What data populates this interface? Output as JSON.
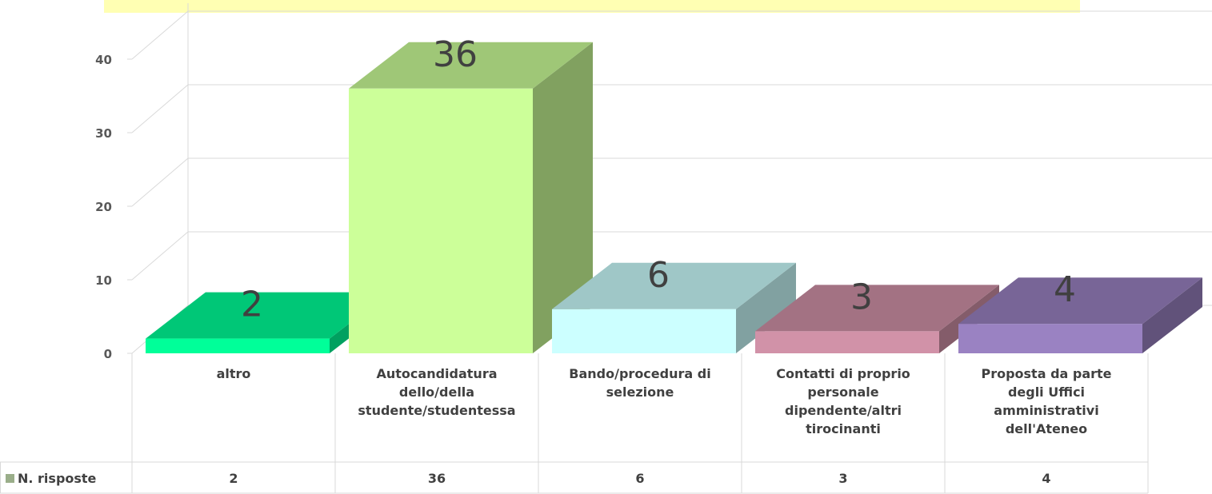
{
  "chart_data": {
    "type": "bar3d",
    "categories": [
      "altro",
      "Autocandidatura dello/della studente/studentessa",
      "Bando/procedura di selezione",
      "Contatti di proprio personale dipendente/altri tirocinanti",
      "Proposta da parte degli Uffici amministrativi dell'Ateneo"
    ],
    "series": [
      {
        "name": "N. risposte",
        "color": "#9aae8a",
        "values": [
          2,
          36,
          6,
          3,
          4
        ],
        "colors": [
          "#00ff99",
          "#ccff99",
          "#ccffff",
          "#d192a8",
          "#9a82c2"
        ]
      }
    ],
    "ylim": [
      0,
      40
    ],
    "yticks": [
      0,
      10,
      20,
      30,
      40
    ],
    "grid": true,
    "data_table": true
  }
}
